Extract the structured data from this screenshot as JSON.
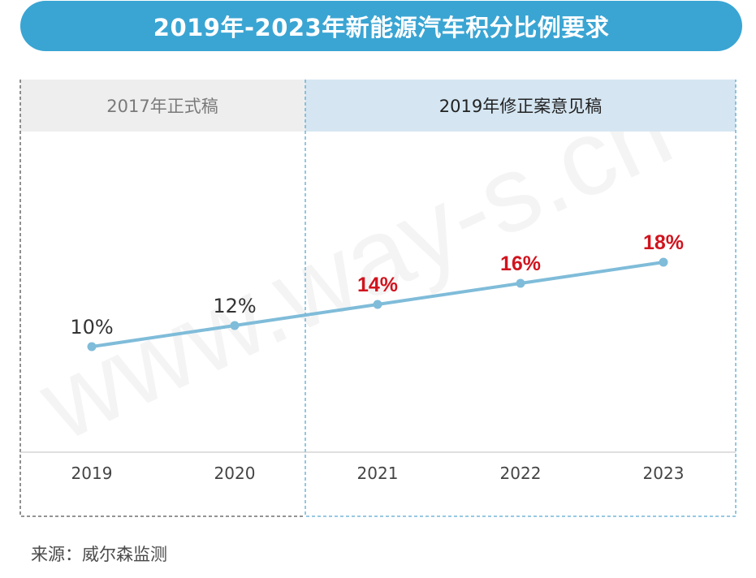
{
  "title": "2019年-2023年新能源汽车积分比例要求",
  "source": "来源：威尔森监测",
  "watermark": "www.way-s.cn",
  "colors": {
    "title_bg": "#3aa5d3",
    "line": "#7fbcd9",
    "label_highlight": "#d0141e",
    "label_normal": "#333333",
    "panel_left_header": "#eeeeee",
    "panel_right_header": "#d5e6f2",
    "panel_right_border": "#5aa9d0",
    "panel_left_border": "#555555"
  },
  "chart_data": {
    "type": "line",
    "title": "2019年-2023年新能源汽车积分比例要求",
    "categories": [
      "2019",
      "2020",
      "2021",
      "2022",
      "2023"
    ],
    "series": [
      {
        "values": [
          10,
          12,
          14,
          16,
          18
        ]
      }
    ],
    "labels": [
      "10%",
      "12%",
      "14%",
      "16%",
      "18%"
    ],
    "highlighted": [
      false,
      false,
      true,
      true,
      true
    ],
    "segments": [
      {
        "label": "2017年正式稿",
        "categories": [
          "2019",
          "2020"
        ]
      },
      {
        "label": "2019年修正案意见稿",
        "categories": [
          "2021",
          "2022",
          "2023"
        ]
      }
    ],
    "unit": "%"
  }
}
